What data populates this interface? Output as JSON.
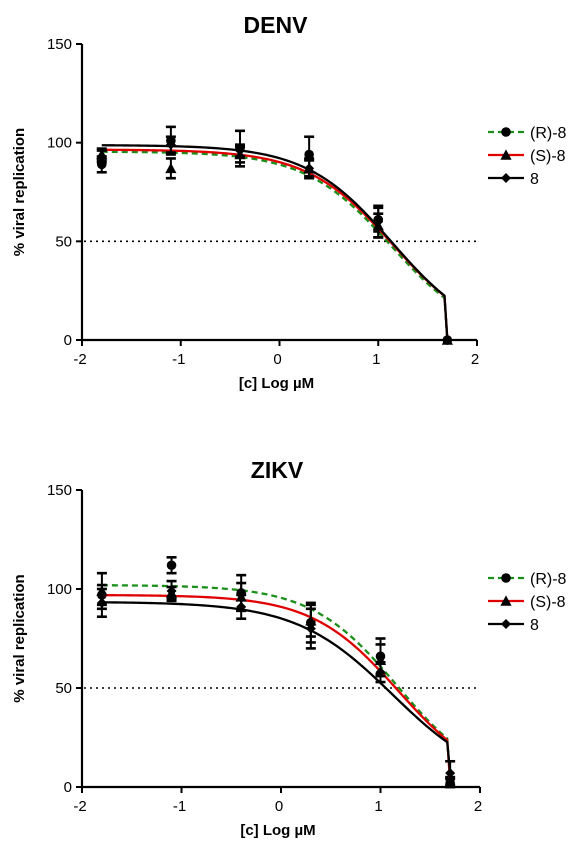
{
  "colors": {
    "R8": "#1a8f1a",
    "S8": "#e00000",
    "P8": "#000000"
  },
  "chart_data": [
    {
      "type": "line",
      "title": "DENV",
      "xlabel": "[c] Log µM",
      "ylabel": "% viral replication",
      "xlim": [
        -2,
        2
      ],
      "ylim": [
        0,
        150
      ],
      "xticks": [
        -2,
        -1,
        0,
        1,
        2
      ],
      "yticks": [
        0,
        50,
        100,
        150
      ],
      "x_tick_labels": [
        "-2",
        "-1",
        "0",
        "1",
        "2"
      ],
      "y_tick_labels": [
        "0",
        "50",
        "100",
        "150"
      ],
      "reference_line_y": 50,
      "legend_position": "right",
      "series": [
        {
          "name": "(R)-8",
          "key": "R8",
          "marker": "circle",
          "line_style": "dashed",
          "points": [
            {
              "x": -1.8,
              "y": 89,
              "err": 4
            },
            {
              "x": -1.1,
              "y": 101,
              "err": 7
            },
            {
              "x": -0.4,
              "y": 97,
              "err": 9
            },
            {
              "x": 0.3,
              "y": 94,
              "err": 9
            },
            {
              "x": 1.0,
              "y": 61,
              "err": 6
            },
            {
              "x": 1.7,
              "y": 0,
              "err": 0
            }
          ],
          "fit": {
            "top": 95.5,
            "logic50": 1.13,
            "hill": 1.0
          }
        },
        {
          "name": "(S)-8",
          "key": "S8",
          "marker": "triangle",
          "line_style": "solid",
          "points": [
            {
              "x": -1.8,
              "y": 94,
              "err": 3
            },
            {
              "x": -1.1,
              "y": 87,
              "err": 5
            },
            {
              "x": -0.4,
              "y": 94,
              "err": 4
            },
            {
              "x": 0.3,
              "y": 87,
              "err": 4
            },
            {
              "x": 1.0,
              "y": 58,
              "err": 6
            },
            {
              "x": 1.7,
              "y": 0,
              "err": 0
            }
          ],
          "fit": {
            "top": 96.5,
            "logic50": 1.15,
            "hill": 1.0
          }
        },
        {
          "name": "8",
          "key": "P8",
          "marker": "diamond",
          "line_style": "solid",
          "points": [
            {
              "x": -1.8,
              "y": 93,
              "err": 3
            },
            {
              "x": -1.1,
              "y": 99,
              "err": 4
            },
            {
              "x": -0.4,
              "y": 96,
              "err": 3
            },
            {
              "x": 0.3,
              "y": 87,
              "err": 5
            },
            {
              "x": 1.0,
              "y": 60,
              "err": 8
            },
            {
              "x": 1.7,
              "y": 0,
              "err": 0
            }
          ],
          "fit": {
            "top": 98.8,
            "logic50": 1.14,
            "hill": 1.0
          }
        }
      ]
    },
    {
      "type": "line",
      "title": "ZIKV",
      "xlabel": "[c] Log µM",
      "ylabel": "% viral replication",
      "xlim": [
        -2,
        2
      ],
      "ylim": [
        0,
        150
      ],
      "xticks": [
        -2,
        -1,
        0,
        1,
        2
      ],
      "yticks": [
        0,
        50,
        100,
        150
      ],
      "x_tick_labels": [
        "-2",
        "-1",
        "0",
        "1",
        "2"
      ],
      "y_tick_labels": [
        "0",
        "50",
        "100",
        "150"
      ],
      "reference_line_y": 50,
      "legend_position": "right",
      "series": [
        {
          "name": "(R)-8",
          "key": "R8",
          "marker": "circle",
          "line_style": "dashed",
          "points": [
            {
              "x": -1.8,
              "y": 97,
              "err": 5
            },
            {
              "x": -1.1,
              "y": 112,
              "err": 4
            },
            {
              "x": -0.4,
              "y": 98,
              "err": 9
            },
            {
              "x": 0.3,
              "y": 83,
              "err": 10
            },
            {
              "x": 1.0,
              "y": 66,
              "err": 9
            },
            {
              "x": 1.7,
              "y": 2,
              "err": 3
            }
          ],
          "fit": {
            "top": 102,
            "logic50": 1.17,
            "hill": 1.0
          }
        },
        {
          "name": "(S)-8",
          "key": "S8",
          "marker": "triangle",
          "line_style": "solid",
          "points": [
            {
              "x": -1.8,
              "y": 99,
              "err": 9
            },
            {
              "x": -1.1,
              "y": 98,
              "err": 3
            },
            {
              "x": -0.4,
              "y": 96,
              "err": 7
            },
            {
              "x": 0.3,
              "y": 84,
              "err": 8
            },
            {
              "x": 1.0,
              "y": 64,
              "err": 8
            },
            {
              "x": 1.7,
              "y": 2,
              "err": 2
            }
          ],
          "fit": {
            "top": 97,
            "logic50": 1.18,
            "hill": 1.0
          }
        },
        {
          "name": "8",
          "key": "P8",
          "marker": "diamond",
          "line_style": "solid",
          "points": [
            {
              "x": -1.8,
              "y": 93,
              "err": 7
            },
            {
              "x": -1.1,
              "y": 99,
              "err": 5
            },
            {
              "x": -0.4,
              "y": 91,
              "err": 6
            },
            {
              "x": 0.3,
              "y": 80,
              "err": 10
            },
            {
              "x": 1.0,
              "y": 58,
              "err": 5
            },
            {
              "x": 1.7,
              "y": 7,
              "err": 6
            }
          ],
          "fit": {
            "top": 93.5,
            "logic50": 1.12,
            "hill": 0.9
          }
        }
      ]
    }
  ]
}
